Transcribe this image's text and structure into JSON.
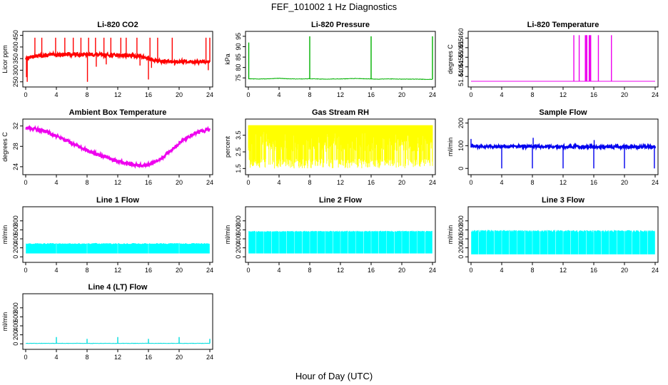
{
  "figure": {
    "title": "FEF_101002  1 Hz Diagnostics",
    "xlabel": "Hour of Day (UTC)"
  },
  "chart_data": [
    {
      "type": "line",
      "title": "Li-820 CO2",
      "ylabel": "Licor ppm",
      "color": "#ff0000",
      "xlim": [
        0,
        24
      ],
      "xticks": [
        0,
        4,
        8,
        12,
        16,
        20,
        24
      ],
      "xtick_labels": [
        "0",
        "4",
        "8",
        "12",
        "16",
        "20",
        "24"
      ],
      "ylim": [
        240,
        455
      ],
      "yticks": [
        250,
        300,
        350,
        400,
        450
      ],
      "ytick_labels": [
        "250",
        "300",
        "350",
        "400",
        "450"
      ],
      "pattern": "noisy-band",
      "x": [
        0,
        0.5,
        1,
        2,
        3,
        4,
        5,
        6,
        7,
        8,
        9,
        10,
        11,
        12,
        13,
        14,
        15,
        16,
        17,
        18,
        19,
        20,
        21,
        22,
        23,
        24
      ],
      "y": [
        350,
        355,
        360,
        363,
        365,
        367,
        368,
        368,
        368,
        367,
        367,
        366,
        366,
        365,
        364,
        362,
        360,
        350,
        340,
        338,
        337,
        338,
        337,
        336,
        336,
        336
      ],
      "noise": 7,
      "spikes": [
        {
          "x": 0.1,
          "y": 270
        },
        {
          "x": 0.2,
          "y": 250
        },
        {
          "x": 1.2,
          "y": 440
        },
        {
          "x": 2.1,
          "y": 440
        },
        {
          "x": 3.9,
          "y": 440
        },
        {
          "x": 5.1,
          "y": 440
        },
        {
          "x": 6.2,
          "y": 440
        },
        {
          "x": 7.2,
          "y": 440
        },
        {
          "x": 8.05,
          "y": 250
        },
        {
          "x": 8.2,
          "y": 440
        },
        {
          "x": 9.1,
          "y": 440
        },
        {
          "x": 9.2,
          "y": 315
        },
        {
          "x": 10.2,
          "y": 440
        },
        {
          "x": 10.5,
          "y": 325
        },
        {
          "x": 11.1,
          "y": 440
        },
        {
          "x": 12.4,
          "y": 440
        },
        {
          "x": 13.1,
          "y": 440
        },
        {
          "x": 14.5,
          "y": 440
        },
        {
          "x": 14.9,
          "y": 320
        },
        {
          "x": 16.0,
          "y": 260
        },
        {
          "x": 16.2,
          "y": 440
        },
        {
          "x": 16.4,
          "y": 310
        },
        {
          "x": 17.2,
          "y": 440
        },
        {
          "x": 19.1,
          "y": 440
        },
        {
          "x": 19.4,
          "y": 320
        },
        {
          "x": 23.5,
          "y": 440
        },
        {
          "x": 23.8,
          "y": 300
        },
        {
          "x": 24.0,
          "y": 440
        }
      ]
    },
    {
      "type": "line",
      "title": "Li-820 Pressure",
      "ylabel": "kPa",
      "color": "#00b000",
      "xlim": [
        0,
        24
      ],
      "xticks": [
        0,
        4,
        8,
        12,
        16,
        20,
        24
      ],
      "xtick_labels": [
        "0",
        "4",
        "8",
        "12",
        "16",
        "20",
        "24"
      ],
      "ylim": [
        72,
        96
      ],
      "yticks": [
        75,
        80,
        85,
        90,
        95
      ],
      "ytick_labels": [
        "75",
        "80",
        "85",
        "90",
        "95"
      ],
      "pattern": "line",
      "x": [
        0,
        1,
        2,
        3,
        4,
        5,
        6,
        7,
        8,
        9,
        10,
        11,
        12,
        13,
        14,
        15,
        16,
        17,
        18,
        19,
        20,
        21,
        22,
        23,
        24
      ],
      "y": [
        74.6,
        74.5,
        74.5,
        74.6,
        74.8,
        74.6,
        74.5,
        74.5,
        74.6,
        74.5,
        74.4,
        74.5,
        74.5,
        74.6,
        74.7,
        74.6,
        74.5,
        74.4,
        74.5,
        74.5,
        74.4,
        74.4,
        74.4,
        74.3,
        74.3
      ],
      "noise": 0.1,
      "spikes": [
        {
          "x": 0.05,
          "y": 92
        },
        {
          "x": 8.0,
          "y": 95
        },
        {
          "x": 16.0,
          "y": 95
        },
        {
          "x": 24.0,
          "y": 95
        }
      ]
    },
    {
      "type": "line",
      "title": "Li-820 Temperature",
      "ylabel": "degrees C",
      "color": "#ee00ee",
      "xlim": [
        0,
        24
      ],
      "xticks": [
        0,
        4,
        8,
        12,
        16,
        20,
        24
      ],
      "xtick_labels": [
        "0",
        "4",
        "8",
        "12",
        "16",
        "20",
        "24"
      ],
      "ylim": [
        51.436,
        51.462
      ],
      "yticks": [
        51.44,
        51.445,
        51.45,
        51.455,
        51.46
      ],
      "ytick_labels": [
        "51.440",
        "51.445",
        "51.450",
        "51.455",
        "51.460"
      ],
      "pattern": "line",
      "x": [
        0,
        24
      ],
      "y": [
        51.4375,
        51.4375
      ],
      "noise": 0,
      "spikes": [
        {
          "x": 13.4,
          "y": 51.4615
        },
        {
          "x": 14.1,
          "y": 51.4615
        },
        {
          "x": 14.9,
          "y": 51.4615
        },
        {
          "x": 15.0,
          "y": 51.4615
        },
        {
          "x": 15.1,
          "y": 51.4615
        },
        {
          "x": 15.4,
          "y": 51.4615
        },
        {
          "x": 15.5,
          "y": 51.4615
        },
        {
          "x": 15.6,
          "y": 51.4615
        },
        {
          "x": 16.6,
          "y": 51.4615
        },
        {
          "x": 18.3,
          "y": 51.4615
        }
      ]
    },
    {
      "type": "line",
      "title": "Ambient Box Temperature",
      "ylabel": "degrees C",
      "color": "#ee00ee",
      "xlim": [
        0,
        24
      ],
      "xticks": [
        0,
        4,
        8,
        12,
        16,
        20,
        24
      ],
      "xtick_labels": [
        "0",
        "4",
        "8",
        "12",
        "16",
        "20",
        "24"
      ],
      "ylim": [
        23,
        32.8
      ],
      "yticks": [
        24,
        28,
        32
      ],
      "ytick_labels": [
        "24",
        "28",
        "32"
      ],
      "pattern": "noisy-band",
      "x": [
        0,
        1,
        2,
        3,
        4,
        5,
        6,
        7,
        8,
        9,
        10,
        11,
        12,
        13,
        14,
        15,
        16,
        17,
        18,
        19,
        20,
        21,
        22,
        23,
        24
      ],
      "y": [
        31.6,
        31.5,
        31.2,
        30.7,
        30.1,
        29.4,
        28.6,
        27.9,
        27.2,
        26.6,
        26.1,
        25.6,
        25.1,
        24.7,
        24.4,
        24.2,
        24.4,
        25.0,
        26.0,
        27.3,
        28.6,
        29.7,
        30.5,
        31.0,
        31.3
      ],
      "noise": 0.35,
      "spikes": []
    },
    {
      "type": "line",
      "title": "Gas Stream RH",
      "ylabel": "percent",
      "color": "#ffff00",
      "xlim": [
        0,
        24
      ],
      "xticks": [
        0,
        4,
        8,
        12,
        16,
        20,
        24
      ],
      "xtick_labels": [
        "0",
        "4",
        "8",
        "12",
        "16",
        "20",
        "24"
      ],
      "ylim": [
        1.3,
        4.3
      ],
      "yticks": [
        1.5,
        2.5,
        3.5
      ],
      "ytick_labels": [
        "1.5",
        "2.5",
        "3.5"
      ],
      "pattern": "fill-drops",
      "x": [
        0,
        24
      ],
      "y": [
        4.1,
        4.1
      ],
      "fill_low": 3.7,
      "drop_floor": 1.5,
      "noise": 0,
      "spikes": []
    },
    {
      "type": "line",
      "title": "Sample Flow",
      "ylabel": "ml/min",
      "color": "#0000ee",
      "xlim": [
        0,
        24
      ],
      "xticks": [
        0,
        4,
        8,
        12,
        16,
        20,
        24
      ],
      "xtick_labels": [
        "0",
        "4",
        "8",
        "12",
        "16",
        "20",
        "24"
      ],
      "ylim": [
        -15,
        205
      ],
      "yticks": [
        0,
        100,
        200
      ],
      "ytick_labels": [
        "0",
        "100",
        "200"
      ],
      "pattern": "noisy-band",
      "x": [
        0,
        24
      ],
      "y": [
        97,
        95
      ],
      "noise": 6,
      "spikes": [
        {
          "x": 0.0,
          "y": 130
        },
        {
          "x": 4.0,
          "y": 0
        },
        {
          "x": 8.0,
          "y": 0
        },
        {
          "x": 8.1,
          "y": 135
        },
        {
          "x": 12.0,
          "y": 0
        },
        {
          "x": 16.0,
          "y": 0
        },
        {
          "x": 16.05,
          "y": 125
        },
        {
          "x": 20.0,
          "y": 0
        },
        {
          "x": 23.9,
          "y": 0
        }
      ]
    },
    {
      "type": "area",
      "title": "Line 1 Flow",
      "ylabel": "ml/min",
      "color": "#00ffff",
      "xlim": [
        0,
        24
      ],
      "xticks": [
        0,
        4,
        8,
        12,
        16,
        20,
        24
      ],
      "xtick_labels": [
        "0",
        "4",
        "8",
        "12",
        "16",
        "20",
        "24"
      ],
      "ylim": [
        -60,
        1050
      ],
      "yticks": [
        0,
        200,
        400,
        600,
        800
      ],
      "ytick_labels": [
        "0",
        "200",
        "400",
        "600",
        "800"
      ],
      "pattern": "band",
      "x": [
        0,
        24
      ],
      "y": [
        290,
        290
      ],
      "band_low": 80,
      "gaps": [
        4,
        8,
        12,
        16,
        20
      ],
      "noise": 12,
      "spikes": []
    },
    {
      "type": "area",
      "title": "Line 2 Flow",
      "ylabel": "ml/min",
      "color": "#00ffff",
      "xlim": [
        0,
        24
      ],
      "xticks": [
        0,
        4,
        8,
        12,
        16,
        20,
        24
      ],
      "xtick_labels": [
        "0",
        "4",
        "8",
        "12",
        "16",
        "20",
        "24"
      ],
      "ylim": [
        -60,
        1050
      ],
      "yticks": [
        0,
        200,
        400,
        600,
        800
      ],
      "ytick_labels": [
        "0",
        "200",
        "400",
        "600",
        "800"
      ],
      "pattern": "band",
      "x": [
        0,
        24
      ],
      "y": [
        555,
        560
      ],
      "band_low": 80,
      "gaps": [
        1,
        2,
        3,
        4,
        5,
        6,
        7,
        8,
        9,
        10,
        11,
        12,
        13,
        14,
        15,
        16,
        17,
        18,
        19,
        20,
        21,
        22,
        23
      ],
      "noise": 14,
      "spikes": []
    },
    {
      "type": "area",
      "title": "Line 3 Flow",
      "ylabel": "ml/min",
      "color": "#00ffff",
      "xlim": [
        0,
        24
      ],
      "xticks": [
        0,
        4,
        8,
        12,
        16,
        20,
        24
      ],
      "xtick_labels": [
        "0",
        "4",
        "8",
        "12",
        "16",
        "20",
        "24"
      ],
      "ylim": [
        -60,
        1050
      ],
      "yticks": [
        0,
        200,
        400,
        600,
        800
      ],
      "ytick_labels": [
        "0",
        "200",
        "400",
        "600",
        "800"
      ],
      "pattern": "band",
      "x": [
        0,
        24
      ],
      "y": [
        565,
        560
      ],
      "band_low": 60,
      "gaps": [
        1,
        2,
        3,
        4,
        5,
        6,
        7,
        8,
        9,
        10,
        11,
        12,
        13,
        14,
        15,
        16,
        17,
        18,
        19,
        20,
        21,
        22,
        23
      ],
      "noise": 30,
      "spikes": []
    },
    {
      "type": "line",
      "title": "Line 4 (LT) Flow",
      "ylabel": "ml/min",
      "color": "#00dddd",
      "xlim": [
        0,
        24
      ],
      "xticks": [
        0,
        4,
        8,
        12,
        16,
        20,
        24
      ],
      "xtick_labels": [
        "0",
        "4",
        "8",
        "12",
        "16",
        "20",
        "24"
      ],
      "ylim": [
        -60,
        1050
      ],
      "yticks": [
        0,
        200,
        400,
        600,
        800
      ],
      "ytick_labels": [
        "0",
        "200",
        "400",
        "600",
        "800"
      ],
      "pattern": "line",
      "x": [
        0,
        24
      ],
      "y": [
        10,
        10
      ],
      "noise": 4,
      "spikes": [
        {
          "x": 4.0,
          "y": 150
        },
        {
          "x": 8.0,
          "y": 110
        },
        {
          "x": 12.0,
          "y": 150
        },
        {
          "x": 16.0,
          "y": 110
        },
        {
          "x": 20.0,
          "y": 150
        },
        {
          "x": 24.0,
          "y": 110
        }
      ]
    }
  ]
}
